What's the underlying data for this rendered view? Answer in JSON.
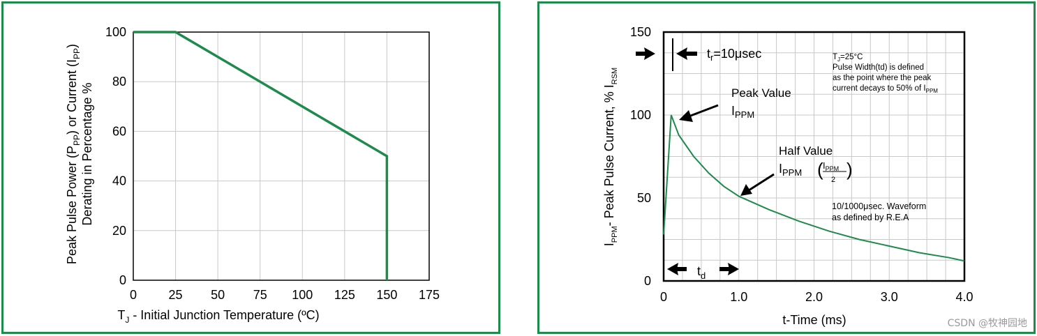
{
  "colors": {
    "border": "#1e8a4c",
    "line": "#1e8a4c",
    "grid": "#c8c8c8",
    "axis": "#000000"
  },
  "chart_data": [
    {
      "type": "line",
      "title": "",
      "xlabel_main": "T",
      "xlabel_sub": "J",
      "xlabel_rest": " - Initial Junction Temperature (ºC)",
      "ylabel_line1_a": "Peak Pulse Power (P",
      "ylabel_line1_sub1": "PP",
      "ylabel_line1_b": ") or Current (I",
      "ylabel_line1_sub2": "PP",
      "ylabel_line1_c": ")",
      "ylabel_line2": "Derating in Percentage %",
      "xlim": [
        0,
        175
      ],
      "ylim": [
        0,
        100
      ],
      "xticks": [
        "0",
        "25",
        "50",
        "75",
        "100",
        "125",
        "150",
        "175"
      ],
      "yticks": [
        "0",
        "20",
        "40",
        "60",
        "80",
        "100"
      ],
      "x": [
        0,
        25,
        150,
        150
      ],
      "y": [
        100,
        100,
        50,
        0
      ],
      "grid": true
    },
    {
      "type": "line",
      "title": "",
      "xlabel": "t-Time (ms)",
      "ylabel_a": "I",
      "ylabel_sub1": "PPM",
      "ylabel_b": "- Peak Pulse Current, % I",
      "ylabel_sub2": "RSM",
      "xlim": [
        0,
        4.0
      ],
      "ylim": [
        0,
        150
      ],
      "xticks": [
        "0",
        "1.0",
        "2.0",
        "3.0",
        "4.0"
      ],
      "yticks": [
        "0",
        "50",
        "100",
        "150"
      ],
      "grid": true,
      "x": [
        0,
        0.1,
        0.2,
        0.4,
        0.6,
        0.8,
        1.0,
        1.4,
        1.8,
        2.2,
        2.6,
        3.0,
        3.4,
        3.8,
        4.0
      ],
      "y": [
        28,
        100,
        88,
        75,
        65,
        57,
        51,
        43,
        36,
        30,
        25,
        21,
        17,
        14,
        12
      ],
      "annotations": {
        "tr_a": "t",
        "tr_sub": "r",
        "tr_b": "=10μsec",
        "cond_tj_a": "T",
        "cond_tj_sub": "J",
        "cond_tj_b": "=25°C",
        "cond_line2": "Pulse Width(td) is defined",
        "cond_line3": "as the point where the peak",
        "cond_line4": "current decays to 50% of I",
        "cond_line4_sub": "PPM",
        "peak_label": "Peak Value",
        "peak_i": "I",
        "peak_i_sub": "PPM",
        "half_label": "Half Value",
        "half_i": "I",
        "half_i_sub": "PPM",
        "half_frac_num_i": "I",
        "half_frac_num_sub": "PPM",
        "half_frac_den": "2",
        "waveform_line1": "10/1000μsec. Waveform",
        "waveform_line2": "as defined by R.E.A",
        "td_a": "t",
        "td_sub": "d"
      }
    }
  ],
  "watermark": "CSDN @牧神园地"
}
